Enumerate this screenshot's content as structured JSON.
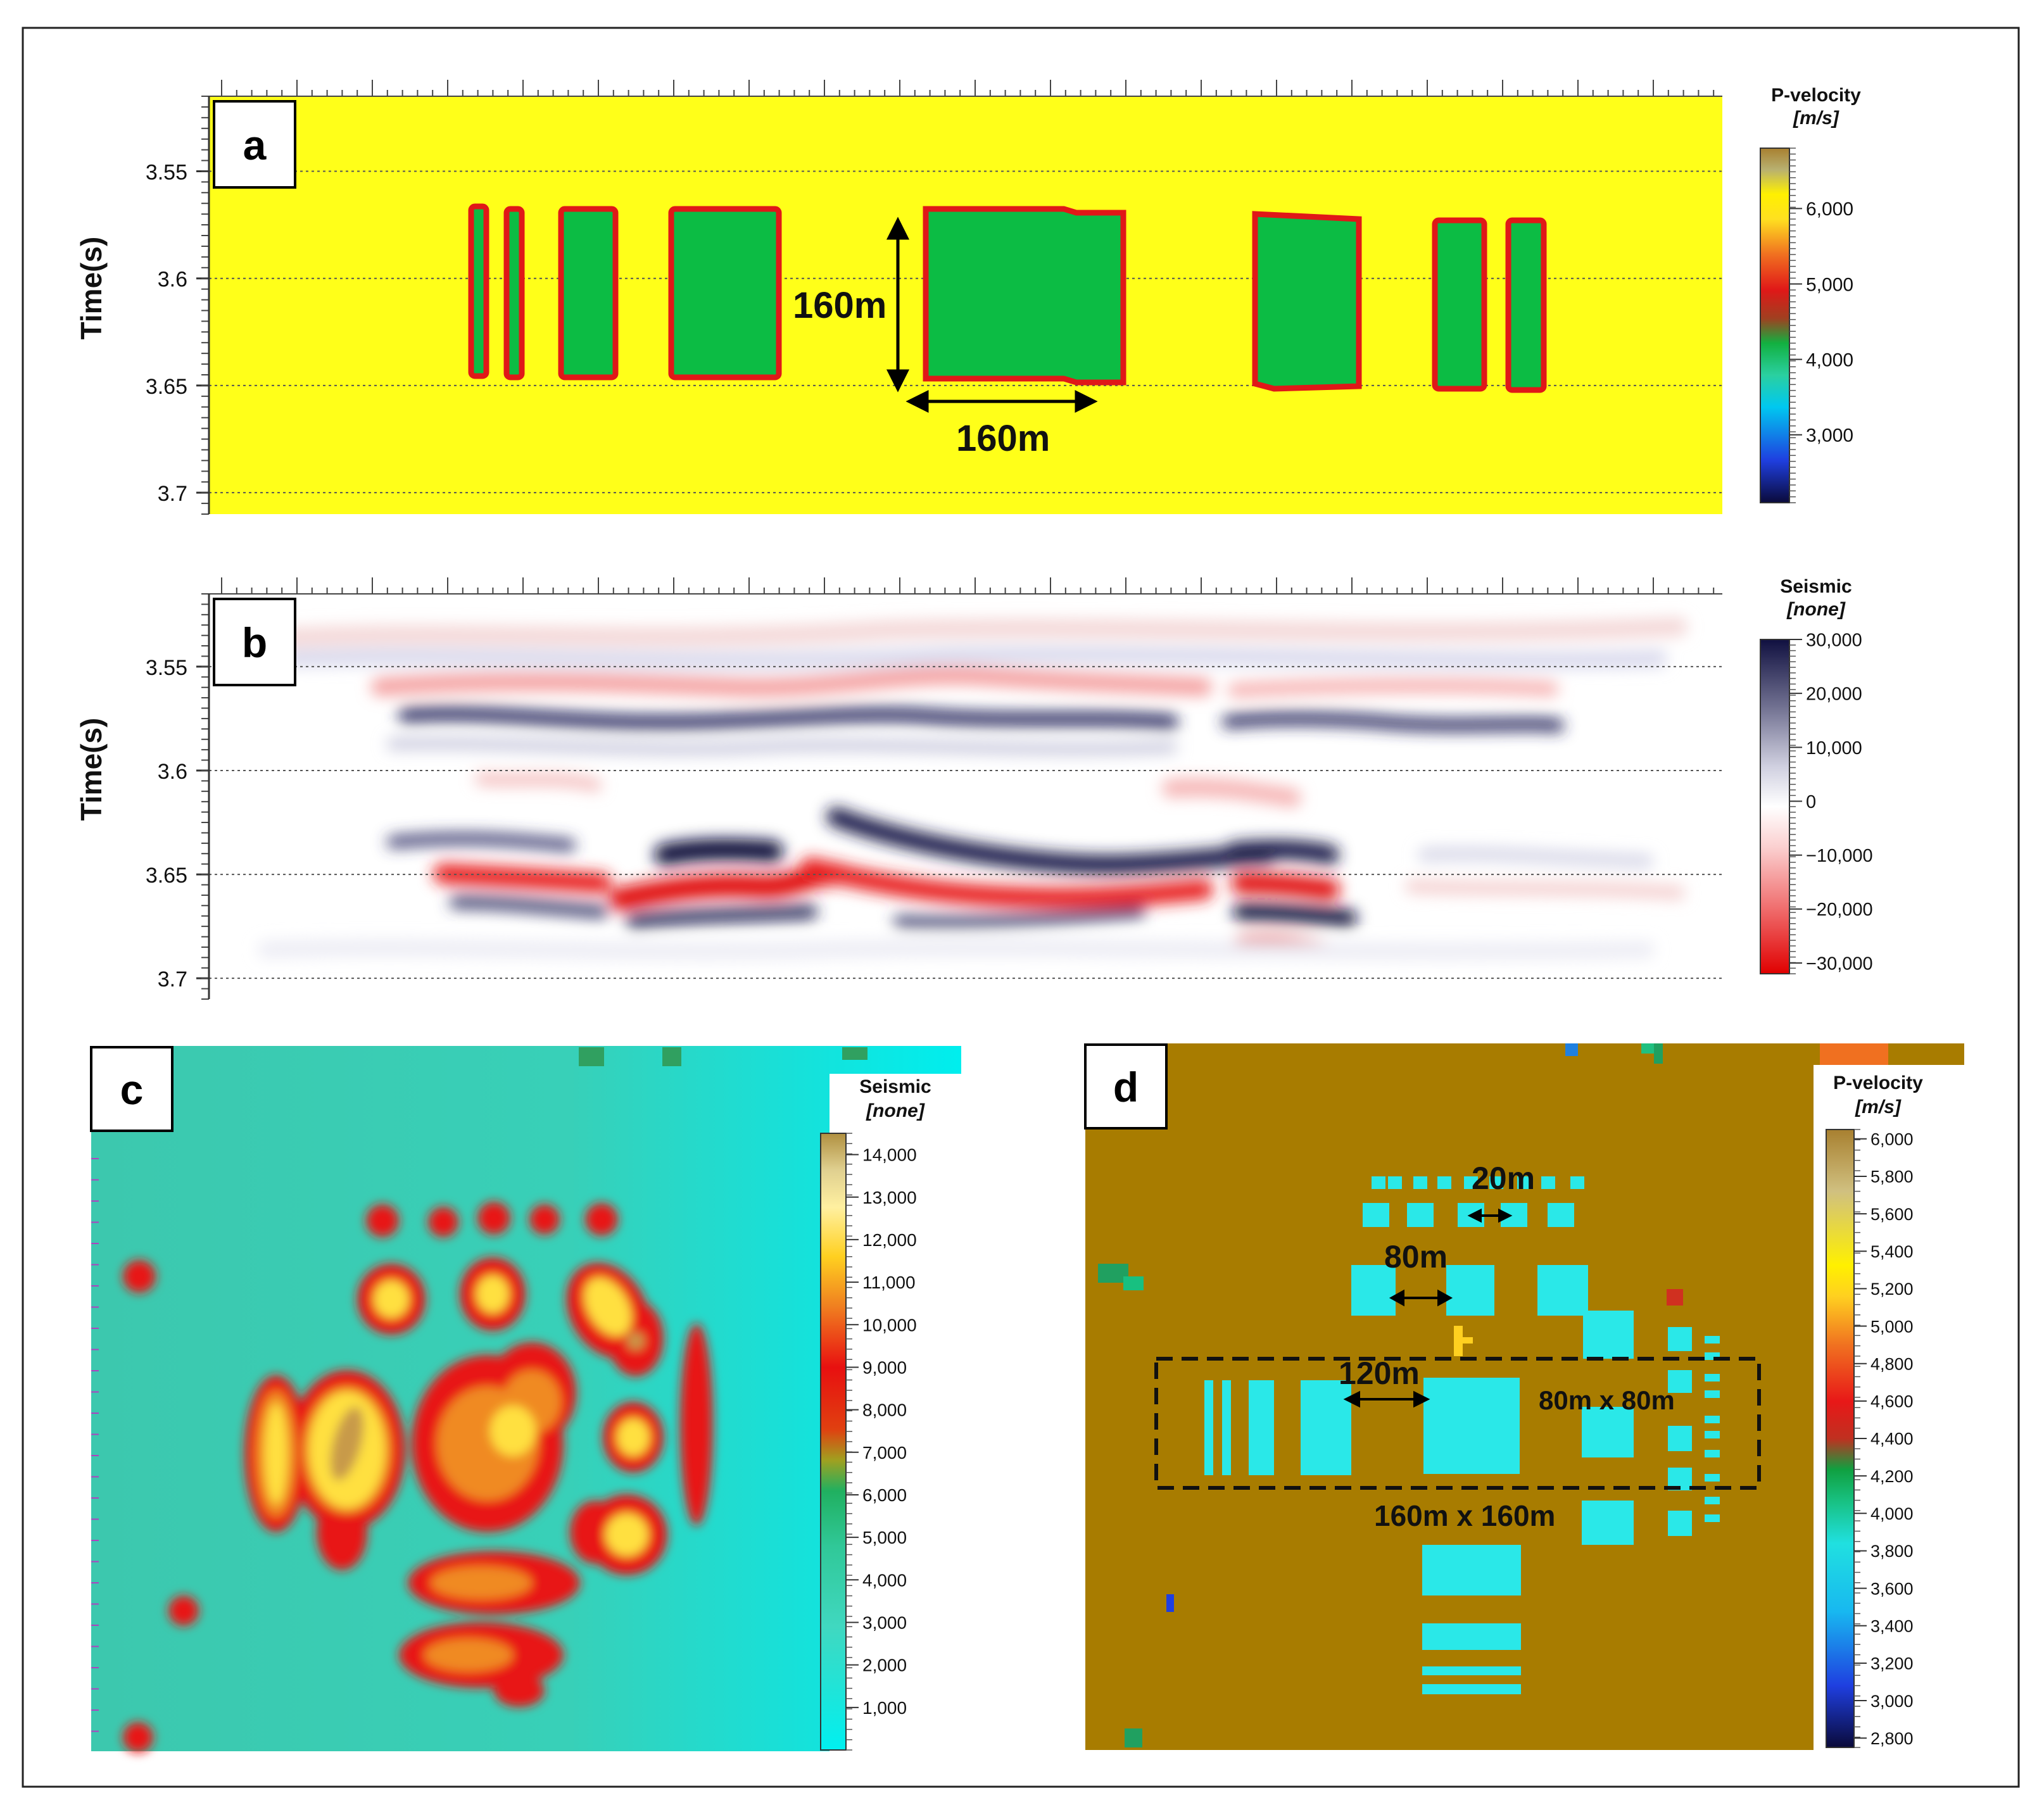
{
  "panels": {
    "a": {
      "letter": "a",
      "ylabel": "Time(s)",
      "yticks": [
        "3.55",
        "3.6",
        "3.65",
        "3.7"
      ],
      "ytick_values": [
        3.55,
        3.6,
        3.65,
        3.7
      ],
      "ylim": [
        3.515,
        3.71
      ],
      "annotations": {
        "height": "160m",
        "width": "160m"
      },
      "colorbar": {
        "title": "P-velocity",
        "unit": "[m/s]",
        "labels": [
          "6,000",
          "5,000",
          "4,000",
          "3,000"
        ],
        "values": [
          6000,
          5000,
          4000,
          3000
        ],
        "range": [
          2100,
          6800
        ],
        "colors": [
          "#0a0a3a",
          "#1f3fe0",
          "#00c8f0",
          "#2ad0a0",
          "#12b040",
          "#a04020",
          "#e01818",
          "#f07020",
          "#ffe020",
          "#fff000",
          "#b8b070",
          "#a88030"
        ]
      },
      "background_color": "#ffff19",
      "body_color": "#0cbc44",
      "edge_color": "#e01818"
    },
    "b": {
      "letter": "b",
      "ylabel": "Time(s)",
      "yticks": [
        "3.55",
        "3.6",
        "3.65",
        "3.7"
      ],
      "ytick_values": [
        3.55,
        3.6,
        3.65,
        3.7
      ],
      "ylim": [
        3.515,
        3.71
      ],
      "colorbar": {
        "title": "Seismic",
        "unit": "[none]",
        "labels": [
          "30,000",
          "20,000",
          "10,000",
          "0",
          "−10,000",
          "−20,000",
          "−30,000"
        ],
        "values": [
          30000,
          20000,
          10000,
          0,
          -10000,
          -20000,
          -30000
        ],
        "range": [
          -32000,
          30000
        ],
        "colors": [
          "#e00000",
          "#f07070",
          "#fbd0d0",
          "#ffffff",
          "#d0d0e0",
          "#707090",
          "#101040"
        ]
      },
      "positive_color": "#101040",
      "negative_color": "#e01010"
    },
    "c": {
      "letter": "c",
      "colorbar": {
        "title": "Seismic",
        "unit": "[none]",
        "labels": [
          "14,000",
          "13,000",
          "12,000",
          "11,000",
          "10,000",
          "9,000",
          "8,000",
          "7,000",
          "6,000",
          "5,000",
          "4,000",
          "3,000",
          "2,000",
          "1,000"
        ],
        "values": [
          14000,
          13000,
          12000,
          11000,
          10000,
          9000,
          8000,
          7000,
          6000,
          5000,
          4000,
          3000,
          2000,
          1000
        ],
        "range": [
          0,
          14500
        ],
        "colors": [
          "#00f0f0",
          "#40d8c0",
          "#30c898",
          "#20b060",
          "#a0a020",
          "#e04010",
          "#e81010",
          "#f08020",
          "#ffd020",
          "#fff0a0",
          "#e0d090",
          "#b09040"
        ]
      },
      "background_color": "#35d0b8",
      "anomaly_color": "#e81818",
      "core_color": "#ffe050"
    },
    "d": {
      "letter": "d",
      "colorbar": {
        "title": "P-velocity",
        "unit": "[m/s]",
        "labels": [
          "6,000",
          "5,800",
          "5,600",
          "5,400",
          "5,200",
          "5,000",
          "4,800",
          "4,600",
          "4,400",
          "4,200",
          "4,000",
          "3,800",
          "3,600",
          "3,400",
          "3,200",
          "3,000",
          "2,800"
        ],
        "values": [
          6000,
          5800,
          5600,
          5400,
          5200,
          5000,
          4800,
          4600,
          4400,
          4200,
          4000,
          3800,
          3600,
          3400,
          3200,
          3000,
          2800
        ],
        "range": [
          2750,
          6050
        ],
        "colors": [
          "#0a0a3a",
          "#1f3fe0",
          "#18b8f0",
          "#20e0e0",
          "#18c080",
          "#10a040",
          "#c03020",
          "#e81818",
          "#f07020",
          "#ffd020",
          "#fff000",
          "#d0c080",
          "#a88030"
        ]
      },
      "annotations": {
        "gap_small": "20m",
        "gap_medium": "80m",
        "gap_large": "120m",
        "box_small": "80m x 80m",
        "box_large": "160m x 160m"
      },
      "background_color": "#a87c00",
      "body_color": "#2ae8e8"
    }
  }
}
